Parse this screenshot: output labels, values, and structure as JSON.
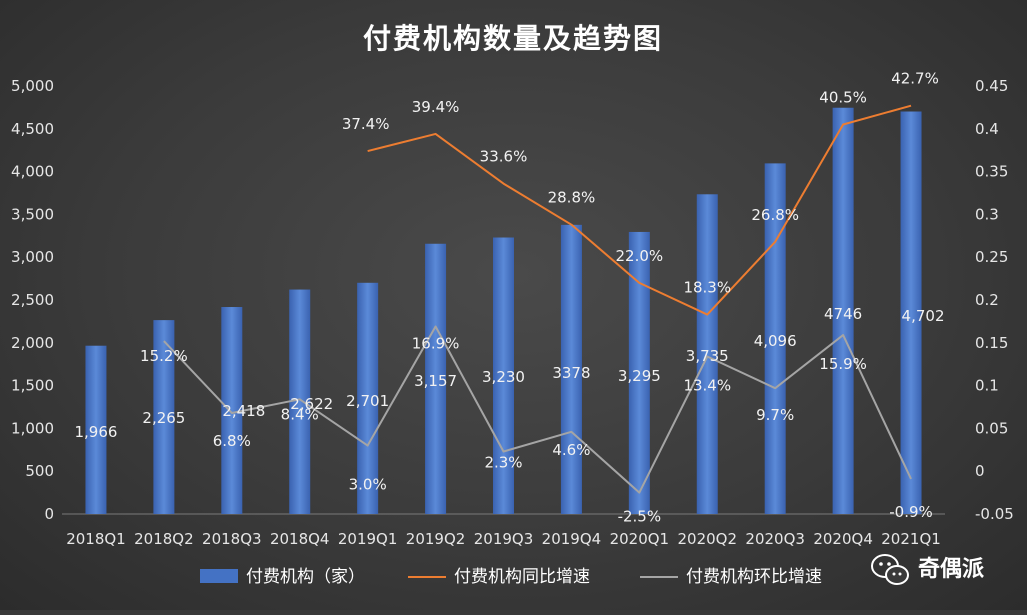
{
  "chart_data": {
    "type": "bar",
    "title": "付费机构数量及趋势图",
    "categories": [
      "2018Q1",
      "2018Q2",
      "2018Q3",
      "2018Q4",
      "2019Q1",
      "2019Q2",
      "2019Q3",
      "2019Q4",
      "2020Q1",
      "2020Q2",
      "2020Q3",
      "2020Q4",
      "2021Q1"
    ],
    "bar_series": {
      "name": "付费机构（家）",
      "values": [
        1966,
        2265,
        2418,
        2622,
        2701,
        3157,
        3230,
        3378,
        3295,
        3735,
        4096,
        4746,
        4702
      ],
      "labels": [
        "1,966",
        "2,265",
        "2,418",
        "2,622",
        "2,701",
        "3,157",
        "3,230",
        "3378",
        "3,295",
        "3,735",
        "4,096",
        "4746",
        "4,702"
      ],
      "color": "#4472c4",
      "axis": "left"
    },
    "yoy_series": {
      "name": "付费机构同比增速",
      "values": [
        null,
        null,
        null,
        null,
        0.374,
        0.394,
        0.336,
        0.288,
        0.22,
        0.183,
        0.268,
        0.405,
        0.427
      ],
      "labels": [
        "",
        "",
        "",
        "",
        "37.4%",
        "39.4%",
        "33.6%",
        "28.8%",
        "22.0%",
        "18.3%",
        "26.8%",
        "40.5%",
        "42.7%"
      ],
      "color": "#ed7d31",
      "axis": "right"
    },
    "qoq_series": {
      "name": "付费机构环比增速",
      "values": [
        null,
        0.152,
        0.068,
        0.084,
        0.03,
        0.169,
        0.023,
        0.046,
        -0.025,
        0.134,
        0.097,
        0.159,
        -0.009
      ],
      "labels": [
        "",
        "15.2%",
        "6.8%",
        "8.4%",
        "3.0%",
        "16.9%",
        "2.3%",
        "4.6%",
        "-2.5%",
        "13.4%",
        "9.7%",
        "15.9%",
        "-0.9%"
      ],
      "color": "#a5a5a5",
      "axis": "right"
    },
    "y_left": {
      "min": 0,
      "max": 5000,
      "step": 500,
      "ticks": [
        "0",
        "500",
        "1,000",
        "1,500",
        "2,000",
        "2,500",
        "3,000",
        "3,500",
        "4,000",
        "4,500",
        "5,000"
      ]
    },
    "y_right": {
      "min": -0.05,
      "max": 0.45,
      "step": 0.05,
      "ticks": [
        "-0.05",
        "0",
        "0.05",
        "0.1",
        "0.15",
        "0.2",
        "0.25",
        "0.3",
        "0.35",
        "0.4",
        "0.45"
      ]
    },
    "legend_position": "bottom"
  },
  "watermark": {
    "text": "奇偶派",
    "icon": "wechat-icon"
  }
}
